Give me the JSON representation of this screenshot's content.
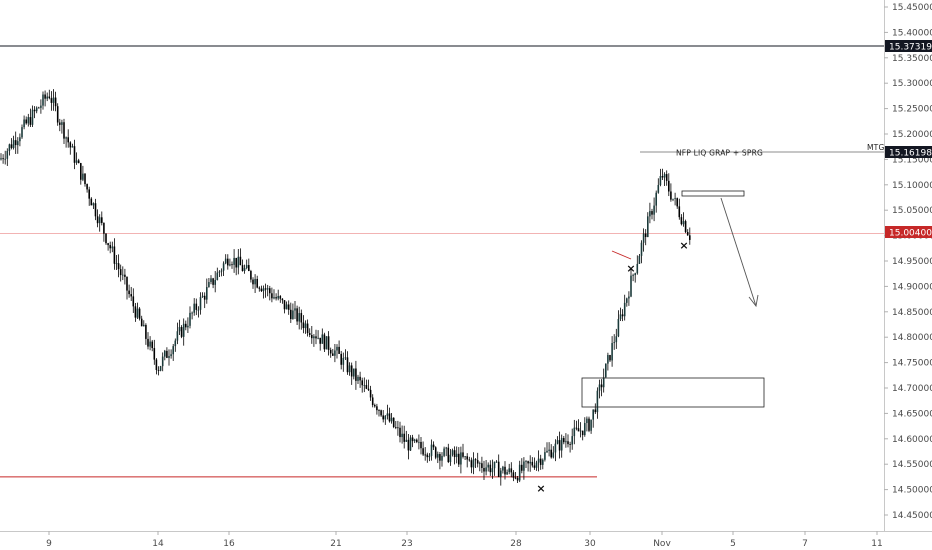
{
  "chart_data": {
    "type": "candlestick",
    "y_ticks": [
      "15.45000",
      "15.40000",
      "15.35000",
      "15.30000",
      "15.25000",
      "15.20000",
      "15.15000",
      "15.10000",
      "15.05000",
      "15.00000",
      "14.95000",
      "14.90000",
      "14.85000",
      "14.80000",
      "14.75000",
      "14.70000",
      "14.65000",
      "14.60000",
      "14.55000",
      "14.50000",
      "14.45000"
    ],
    "x_ticks": [
      "9",
      "14",
      "16",
      "21",
      "23",
      "28",
      "30",
      "Nov",
      "5",
      "7",
      "11"
    ],
    "ylim": [
      14.42,
      15.47
    ],
    "price_path": [
      {
        "x": "start",
        "y": 15.15
      },
      {
        "x": "9",
        "y": 15.28
      },
      {
        "x": "14",
        "y": 14.74
      },
      {
        "x": "16",
        "y": 14.96
      },
      {
        "x": "21",
        "y": 14.77
      },
      {
        "x": "23",
        "y": 14.59
      },
      {
        "x": "28",
        "y": 14.53
      },
      {
        "x": "30",
        "y": 14.63
      },
      {
        "x": "Nov",
        "y": 15.12
      },
      {
        "x": "end",
        "y": 15.0
      }
    ],
    "horizontal_levels": [
      {
        "price": 15.37319,
        "label": "15.37319",
        "color": "#131722"
      },
      {
        "price": 15.16198,
        "label": "15.16198",
        "color": "#131722"
      },
      {
        "price": 15.004,
        "label": "15.00400",
        "color": "#c62828"
      },
      {
        "price": 14.525,
        "label": "",
        "color": "#c62828"
      }
    ],
    "annotations": {
      "trade_note": "NFP LIQ GRAP + SPRG",
      "level_tag": "MTG",
      "markers": [
        "×",
        "×",
        "×"
      ]
    },
    "grid": false,
    "colors": {
      "candles": "#000000",
      "accent_red": "#c62828",
      "badge_dark": "#131722"
    }
  }
}
